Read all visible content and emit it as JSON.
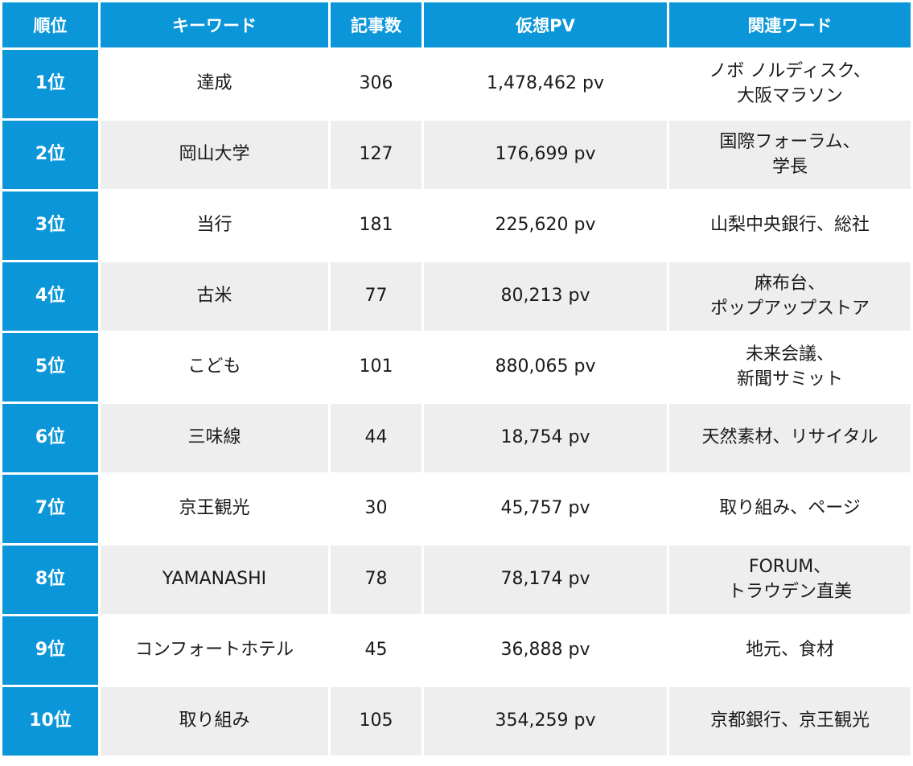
{
  "headers": {
    "rank": "順位",
    "keyword": "キーワード",
    "articles": "記事数",
    "pv": "仮想PV",
    "related": "関連ワード"
  },
  "rows": [
    {
      "rank": "1位",
      "keyword": "達成",
      "articles": "306",
      "pv": "1,478,462 pv",
      "related": [
        "ノボ ノルディスク、",
        "大阪マラソン"
      ]
    },
    {
      "rank": "2位",
      "keyword": "岡山大学",
      "articles": "127",
      "pv": "176,699 pv",
      "related": [
        "国際フォーラム、",
        "学長"
      ]
    },
    {
      "rank": "3位",
      "keyword": "当行",
      "articles": "181",
      "pv": "225,620 pv",
      "related": [
        "山梨中央銀行、総社",
        ""
      ]
    },
    {
      "rank": "4位",
      "keyword": "古米",
      "articles": "77",
      "pv": "80,213 pv",
      "related": [
        "麻布台、",
        "ポップアップストア"
      ]
    },
    {
      "rank": "5位",
      "keyword": "こども",
      "articles": "101",
      "pv": "880,065 pv",
      "related": [
        "未来会議、",
        "新聞サミット"
      ]
    },
    {
      "rank": "6位",
      "keyword": "三味線",
      "articles": "44",
      "pv": "18,754 pv",
      "related": [
        "天然素材、リサイタル",
        ""
      ]
    },
    {
      "rank": "7位",
      "keyword": "京王観光",
      "articles": "30",
      "pv": "45,757 pv",
      "related": [
        "取り組み、ページ",
        ""
      ]
    },
    {
      "rank": "8位",
      "keyword": "YAMANASHI",
      "articles": "78",
      "pv": "78,174 pv",
      "related": [
        "FORUM、",
        "トラウデン直美"
      ]
    },
    {
      "rank": "9位",
      "keyword": "コンフォートホテル",
      "articles": "45",
      "pv": "36,888 pv",
      "related": [
        "地元、食材",
        ""
      ]
    },
    {
      "rank": "10位",
      "keyword": "取り組み",
      "articles": "105",
      "pv": "354,259 pv",
      "related": [
        "京都銀行、京王観光",
        ""
      ]
    }
  ]
}
